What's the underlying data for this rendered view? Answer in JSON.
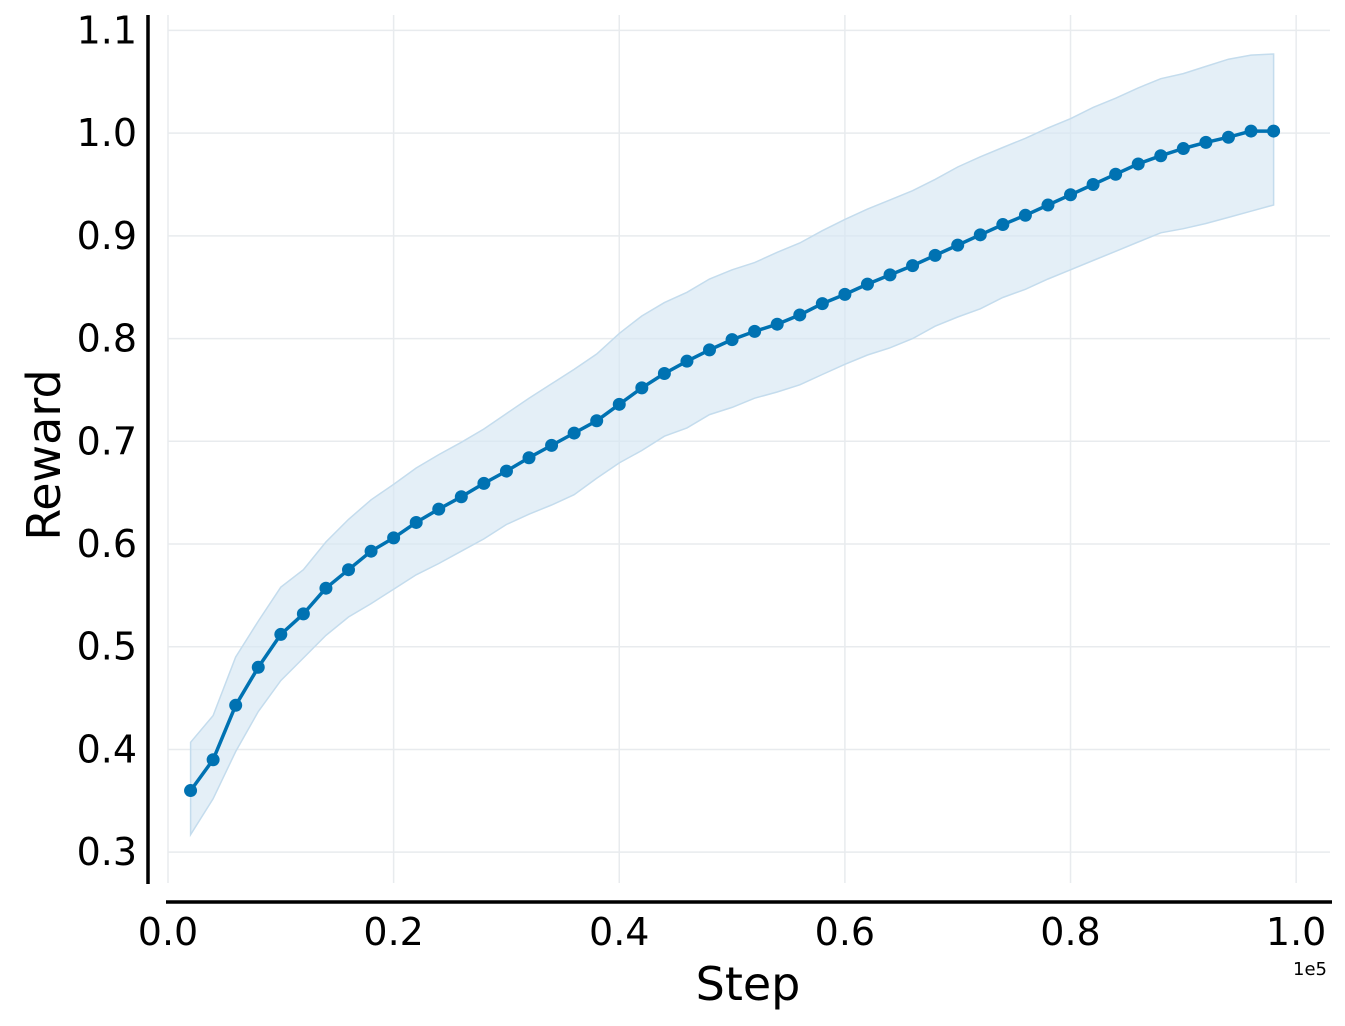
{
  "chart_data": {
    "type": "line",
    "title": "",
    "xlabel": "Step",
    "ylabel": "Reward",
    "x_offset_label": "1e5",
    "xlim": [
      0.0,
      1.03
    ],
    "ylim": [
      0.27,
      1.115
    ],
    "xticks": [
      "0.0",
      "0.2",
      "0.4",
      "0.6",
      "0.8",
      "1.0"
    ],
    "xtick_values": [
      0.0,
      0.2,
      0.4,
      0.6,
      0.8,
      1.0
    ],
    "yticks": [
      "0.3",
      "0.4",
      "0.5",
      "0.6",
      "0.7",
      "0.8",
      "0.9",
      "1.0",
      "1.1"
    ],
    "ytick_values": [
      0.3,
      0.4,
      0.5,
      0.6,
      0.7,
      0.8,
      0.9,
      1.0,
      1.1
    ],
    "grid": true,
    "legend": "none",
    "colors": {
      "line": "#0072b2",
      "band": "#d6e7f3",
      "grid": "#e8ebee",
      "axis": "#000000"
    },
    "series": [
      {
        "x": [
          0.02,
          0.04,
          0.06,
          0.08,
          0.1,
          0.12,
          0.14,
          0.16,
          0.18,
          0.2,
          0.22,
          0.24,
          0.26,
          0.28,
          0.3,
          0.32,
          0.34,
          0.36,
          0.38,
          0.4,
          0.42,
          0.44,
          0.46,
          0.48,
          0.5,
          0.52,
          0.54,
          0.56,
          0.58,
          0.6,
          0.62,
          0.64,
          0.66,
          0.68,
          0.7,
          0.72,
          0.74,
          0.76,
          0.78,
          0.8,
          0.82,
          0.84,
          0.86,
          0.88,
          0.9,
          0.92,
          0.94,
          0.96,
          0.98
        ],
        "y": [
          0.36,
          0.39,
          0.443,
          0.48,
          0.512,
          0.532,
          0.557,
          0.575,
          0.593,
          0.606,
          0.621,
          0.634,
          0.646,
          0.659,
          0.671,
          0.684,
          0.696,
          0.708,
          0.72,
          0.736,
          0.752,
          0.766,
          0.778,
          0.789,
          0.799,
          0.807,
          0.814,
          0.823,
          0.834,
          0.843,
          0.853,
          0.862,
          0.871,
          0.881,
          0.891,
          0.901,
          0.911,
          0.92,
          0.93,
          0.94,
          0.95,
          0.96,
          0.97,
          0.978,
          0.985,
          0.991,
          0.996,
          1.002,
          1.002
        ],
        "upper": [
          0.407,
          0.433,
          0.49,
          0.525,
          0.558,
          0.575,
          0.602,
          0.624,
          0.643,
          0.658,
          0.674,
          0.687,
          0.699,
          0.712,
          0.727,
          0.742,
          0.756,
          0.77,
          0.785,
          0.805,
          0.822,
          0.835,
          0.845,
          0.858,
          0.867,
          0.874,
          0.884,
          0.893,
          0.905,
          0.916,
          0.926,
          0.935,
          0.944,
          0.955,
          0.967,
          0.977,
          0.986,
          0.995,
          1.005,
          1.014,
          1.025,
          1.034,
          1.044,
          1.053,
          1.058,
          1.065,
          1.072,
          1.076,
          1.077
        ],
        "lower": [
          0.317,
          0.352,
          0.398,
          0.437,
          0.467,
          0.489,
          0.511,
          0.529,
          0.542,
          0.556,
          0.57,
          0.581,
          0.593,
          0.605,
          0.619,
          0.629,
          0.638,
          0.648,
          0.664,
          0.679,
          0.691,
          0.705,
          0.713,
          0.726,
          0.733,
          0.742,
          0.748,
          0.755,
          0.765,
          0.775,
          0.784,
          0.791,
          0.8,
          0.812,
          0.821,
          0.829,
          0.84,
          0.848,
          0.858,
          0.867,
          0.876,
          0.885,
          0.894,
          0.903,
          0.907,
          0.912,
          0.918,
          0.924,
          0.93
        ]
      }
    ]
  }
}
